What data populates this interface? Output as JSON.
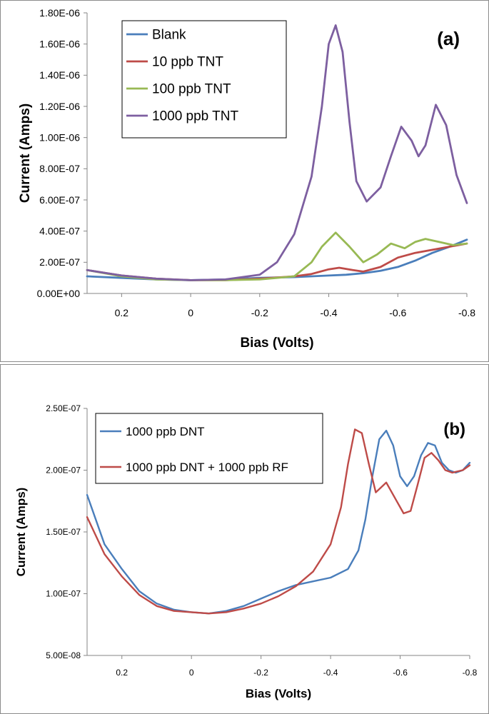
{
  "chart_data": [
    {
      "type": "line",
      "panel_label": "(a)",
      "xlabel": "Bias (Volts)",
      "ylabel": "Current (Amps)",
      "xlim": [
        0.3,
        -0.8
      ],
      "ylim": [
        0,
        1.8e-06
      ],
      "x_ticks": [
        0.2,
        0,
        -0.2,
        -0.4,
        -0.6,
        -0.8
      ],
      "x_tick_labels": [
        "0.2",
        "0",
        "-0.2",
        "-0.4",
        "-0.6",
        "-0.8"
      ],
      "y_ticks": [
        0,
        2e-07,
        4e-07,
        6e-07,
        8e-07,
        1e-06,
        1.2e-06,
        1.4e-06,
        1.6e-06,
        1.8e-06
      ],
      "y_tick_labels": [
        "0.00E+00",
        "2.00E-07",
        "4.00E-07",
        "6.00E-07",
        "8.00E-07",
        "1.00E-06",
        "1.20E-06",
        "1.40E-06",
        "1.60E-06",
        "1.80E-06"
      ],
      "legend_position": "top-left",
      "series": [
        {
          "name": "Blank",
          "color": "#4a7ebb",
          "x": [
            0.3,
            0.2,
            0.1,
            0.0,
            -0.1,
            -0.2,
            -0.3,
            -0.4,
            -0.45,
            -0.5,
            -0.55,
            -0.6,
            -0.65,
            -0.7,
            -0.75,
            -0.8
          ],
          "y": [
            1.1e-07,
            1e-07,
            9e-08,
            8.5e-08,
            9e-08,
            1e-07,
            1.05e-07,
            1.15e-07,
            1.2e-07,
            1.3e-07,
            1.45e-07,
            1.7e-07,
            2.1e-07,
            2.6e-07,
            3e-07,
            3.45e-07
          ]
        },
        {
          "name": "10 ppb TNT",
          "color": "#be4b48",
          "x": [
            0.3,
            0.2,
            0.1,
            0.0,
            -0.1,
            -0.2,
            -0.3,
            -0.35,
            -0.4,
            -0.43,
            -0.47,
            -0.5,
            -0.55,
            -0.6,
            -0.65,
            -0.7,
            -0.75,
            -0.8
          ],
          "y": [
            1.5e-07,
            1.15e-07,
            9.5e-08,
            8.5e-08,
            8.5e-08,
            9.5e-08,
            1.1e-07,
            1.25e-07,
            1.55e-07,
            1.65e-07,
            1.5e-07,
            1.4e-07,
            1.7e-07,
            2.3e-07,
            2.6e-07,
            2.8e-07,
            3e-07,
            3.2e-07
          ]
        },
        {
          "name": "100 ppb TNT",
          "color": "#98b954",
          "x": [
            0.3,
            0.2,
            0.1,
            0.0,
            -0.1,
            -0.2,
            -0.3,
            -0.35,
            -0.38,
            -0.42,
            -0.46,
            -0.5,
            -0.54,
            -0.58,
            -0.62,
            -0.65,
            -0.68,
            -0.72,
            -0.76,
            -0.8
          ],
          "y": [
            1.5e-07,
            1.1e-07,
            9e-08,
            8.5e-08,
            8.5e-08,
            9e-08,
            1.1e-07,
            2e-07,
            3e-07,
            3.9e-07,
            3e-07,
            2e-07,
            2.5e-07,
            3.2e-07,
            2.9e-07,
            3.3e-07,
            3.5e-07,
            3.3e-07,
            3.1e-07,
            3.2e-07
          ]
        },
        {
          "name": "1000 ppb TNT",
          "color": "#7d5fa0",
          "x": [
            0.3,
            0.2,
            0.1,
            0.0,
            -0.1,
            -0.2,
            -0.25,
            -0.3,
            -0.35,
            -0.38,
            -0.4,
            -0.42,
            -0.44,
            -0.46,
            -0.48,
            -0.51,
            -0.55,
            -0.58,
            -0.61,
            -0.64,
            -0.66,
            -0.68,
            -0.71,
            -0.74,
            -0.77,
            -0.8
          ],
          "y": [
            1.5e-07,
            1.15e-07,
            9.5e-08,
            8.5e-08,
            9e-08,
            1.2e-07,
            2e-07,
            3.8e-07,
            7.5e-07,
            1.2e-06,
            1.6e-06,
            1.72e-06,
            1.55e-06,
            1.1e-06,
            7.2e-07,
            5.9e-07,
            6.8e-07,
            8.8e-07,
            1.07e-06,
            9.8e-07,
            8.8e-07,
            9.5e-07,
            1.21e-06,
            1.08e-06,
            7.6e-07,
            5.8e-07
          ]
        }
      ]
    },
    {
      "type": "line",
      "panel_label": "(b)",
      "xlabel": "Bias (Volts)",
      "ylabel": "Current (Amps)",
      "xlim": [
        0.3,
        -0.8
      ],
      "ylim": [
        5e-08,
        2.5e-07
      ],
      "x_ticks": [
        0.2,
        0,
        -0.2,
        -0.4,
        -0.6,
        -0.8
      ],
      "x_tick_labels": [
        "0.2",
        "0",
        "-0.2",
        "-0.4",
        "-0.6",
        "-0.8"
      ],
      "y_ticks": [
        5e-08,
        1e-07,
        1.5e-07,
        2e-07,
        2.5e-07
      ],
      "y_tick_labels": [
        "5.00E-08",
        "1.00E-07",
        "1.50E-07",
        "2.00E-07",
        "2.50E-07"
      ],
      "legend_position": "top-left",
      "series": [
        {
          "name": "1000 ppb DNT",
          "color": "#4a7ebb",
          "x": [
            0.3,
            0.25,
            0.2,
            0.15,
            0.1,
            0.05,
            0.0,
            -0.05,
            -0.1,
            -0.15,
            -0.2,
            -0.25,
            -0.3,
            -0.35,
            -0.4,
            -0.45,
            -0.48,
            -0.5,
            -0.52,
            -0.54,
            -0.56,
            -0.58,
            -0.6,
            -0.62,
            -0.64,
            -0.66,
            -0.68,
            -0.7,
            -0.72,
            -0.74,
            -0.76,
            -0.78,
            -0.8
          ],
          "y": [
            1.8e-07,
            1.4e-07,
            1.2e-07,
            1.02e-07,
            9.2e-08,
            8.7e-08,
            8.5e-08,
            8.4e-08,
            8.6e-08,
            9e-08,
            9.6e-08,
            1.02e-07,
            1.07e-07,
            1.1e-07,
            1.13e-07,
            1.2e-07,
            1.35e-07,
            1.6e-07,
            1.95e-07,
            2.25e-07,
            2.32e-07,
            2.2e-07,
            1.95e-07,
            1.87e-07,
            1.95e-07,
            2.12e-07,
            2.22e-07,
            2.2e-07,
            2.06e-07,
            2e-07,
            1.98e-07,
            2e-07,
            2.06e-07
          ]
        },
        {
          "name": "1000 ppb DNT + 1000 ppb RF",
          "color": "#be4b48",
          "x": [
            0.3,
            0.25,
            0.2,
            0.15,
            0.1,
            0.05,
            0.0,
            -0.05,
            -0.1,
            -0.15,
            -0.2,
            -0.25,
            -0.3,
            -0.35,
            -0.4,
            -0.43,
            -0.45,
            -0.47,
            -0.49,
            -0.51,
            -0.53,
            -0.56,
            -0.59,
            -0.61,
            -0.63,
            -0.65,
            -0.67,
            -0.69,
            -0.71,
            -0.73,
            -0.75,
            -0.78,
            -0.8
          ],
          "y": [
            1.62e-07,
            1.32e-07,
            1.14e-07,
            9.9e-08,
            9e-08,
            8.6e-08,
            8.5e-08,
            8.4e-08,
            8.5e-08,
            8.8e-08,
            9.2e-08,
            9.8e-08,
            1.06e-07,
            1.18e-07,
            1.4e-07,
            1.7e-07,
            2.05e-07,
            2.33e-07,
            2.3e-07,
            2.05e-07,
            1.82e-07,
            1.9e-07,
            1.75e-07,
            1.65e-07,
            1.67e-07,
            1.88e-07,
            2.1e-07,
            2.14e-07,
            2.08e-07,
            2e-07,
            1.98e-07,
            2e-07,
            2.04e-07
          ]
        }
      ]
    }
  ]
}
